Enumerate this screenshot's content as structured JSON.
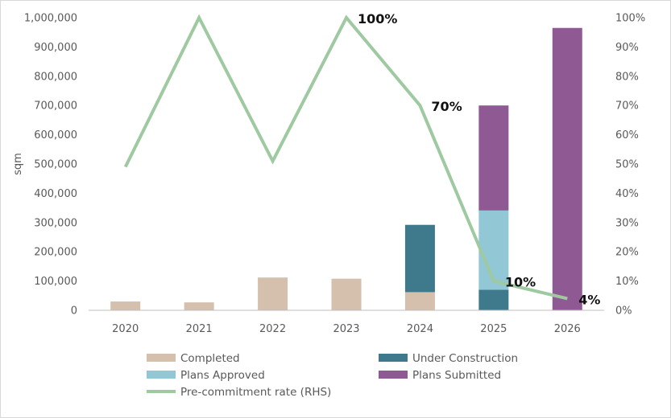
{
  "chart_data": {
    "type": "bar",
    "stacked": true,
    "categories": [
      "2020",
      "2021",
      "2022",
      "2023",
      "2024",
      "2025",
      "2026"
    ],
    "ylabel": "sqm",
    "ylim": [
      0,
      1000000
    ],
    "yticks": [
      0,
      100000,
      200000,
      300000,
      400000,
      500000,
      600000,
      700000,
      800000,
      900000,
      1000000
    ],
    "ytick_labels": [
      "0",
      "100,000",
      "200,000",
      "300,000",
      "400,000",
      "500,000",
      "600,000",
      "700,000",
      "800,000",
      "900,000",
      "1,000,000"
    ],
    "y2lim": [
      0,
      100
    ],
    "y2ticks": [
      0,
      10,
      20,
      30,
      40,
      50,
      60,
      70,
      80,
      90,
      100
    ],
    "y2tick_labels": [
      "0%",
      "10%",
      "20%",
      "30%",
      "40%",
      "50%",
      "60%",
      "70%",
      "80%",
      "90%",
      "100%"
    ],
    "grid": false,
    "legend_position": "bottom",
    "series": [
      {
        "name": "Completed",
        "color": "#d5bfad",
        "values": [
          30000,
          27000,
          112000,
          108000,
          62000,
          0,
          0
        ]
      },
      {
        "name": "Under Construction",
        "color": "#3f7a8c",
        "values": [
          0,
          0,
          0,
          0,
          230000,
          70000,
          0
        ]
      },
      {
        "name": "Plans Approved",
        "color": "#92c7d6",
        "values": [
          0,
          0,
          0,
          0,
          0,
          271000,
          0
        ]
      },
      {
        "name": "Plans Submitted",
        "color": "#8f5a93",
        "values": [
          0,
          0,
          0,
          0,
          0,
          359000,
          965000
        ]
      }
    ],
    "line_series": {
      "name": "Pre-commitment rate (RHS)",
      "color": "#9fc9a0",
      "axis": "right",
      "values": [
        49,
        100,
        51,
        100,
        70,
        10,
        4
      ]
    },
    "annotations": [
      {
        "index": 3,
        "text": "100%"
      },
      {
        "index": 4,
        "text": "70%"
      },
      {
        "index": 5,
        "text": "10%"
      },
      {
        "index": 6,
        "text": "4%"
      }
    ]
  }
}
